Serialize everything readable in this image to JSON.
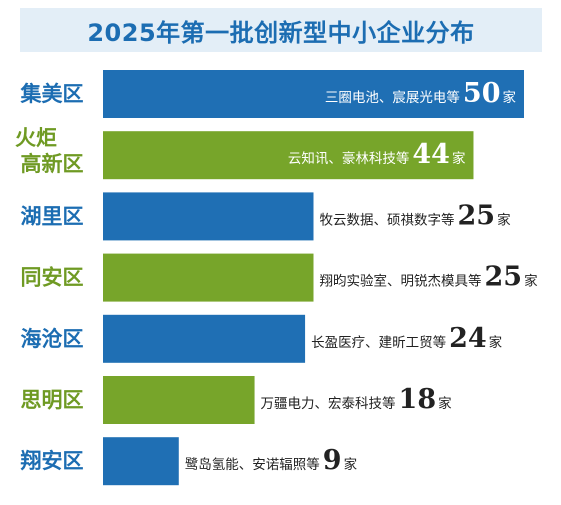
{
  "title": "2025年第一批创新型中小企业分布",
  "colors": {
    "blue": "#1f6fb4",
    "green": "#77a52a",
    "label_blue": "#1c6db2",
    "label_green": "#6f9a23",
    "title_bg": "#e3eef7"
  },
  "chart_data": {
    "type": "bar",
    "orientation": "horizontal",
    "title": "2025年第一批创新型中小企业分布",
    "unit": "家",
    "categories": [
      {
        "lines": [
          "集美区"
        ],
        "name": "集美区"
      },
      {
        "lines": [
          "火炬",
          "高新区"
        ],
        "name": "火炬高新区"
      },
      {
        "lines": [
          "湖里区"
        ],
        "name": "湖里区"
      },
      {
        "lines": [
          "同安区"
        ],
        "name": "同安区"
      },
      {
        "lines": [
          "海沧区"
        ],
        "name": "海沧区"
      },
      {
        "lines": [
          "思明区"
        ],
        "name": "思明区"
      },
      {
        "lines": [
          "翔安区"
        ],
        "name": "翔安区"
      }
    ],
    "values": [
      50,
      44,
      25,
      25,
      24,
      18,
      9
    ],
    "annotations": [
      "三圈电池、宸展光电等",
      "云知讯、豪林科技等",
      "牧云数据、硕祺数字等",
      "翔昀实验室、明锐杰模具等",
      "长盈医疗、建昕工贸等",
      "万疆电力、宏泰科技等",
      "鹭岛氢能、安诺辐照等"
    ],
    "bar_colors": [
      "blue",
      "green",
      "blue",
      "green",
      "blue",
      "green",
      "blue"
    ],
    "xlim": [
      0,
      50
    ]
  }
}
